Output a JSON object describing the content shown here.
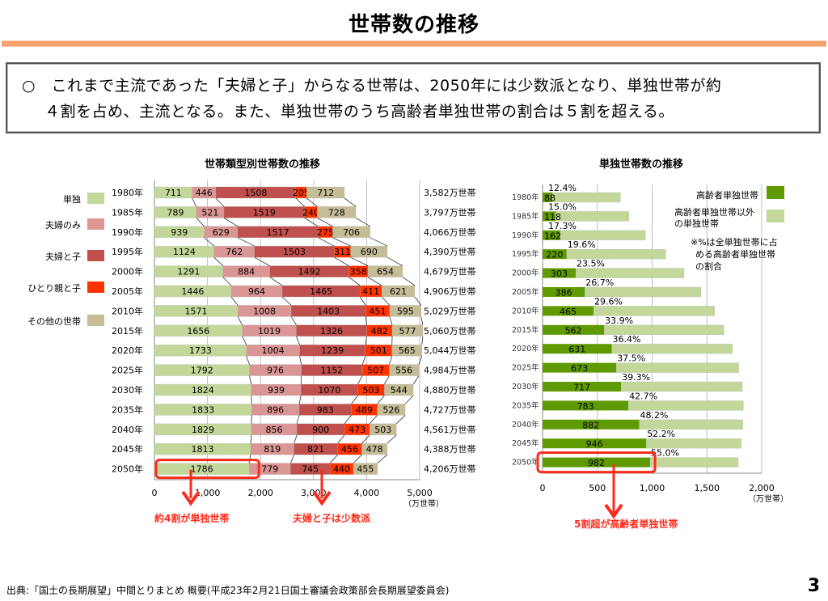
{
  "page": {
    "title": "世帯数の推移",
    "summary_line1": "○　これまで主流であった「夫婦と子」からなる世帯は、2050年には少数派となり、単独世帯が約",
    "summary_line2": "４割を占め、主流となる。また、単独世帯のうち高齢者単独世帯の割合は５割を超える。",
    "footer_source": "出典:「国土の長期展望」中間とりまとめ  概要(平成23年2月21日国土審議会政策部会長期展望委員会)",
    "page_number": "3",
    "annotation_left_1": "約4割が単独世帯",
    "annotation_left_2": "夫婦と子は少数派",
    "annotation_right": "5割超が高齢者単独世帯",
    "accent_color": "#ff2a1a"
  },
  "chart_data": [
    {
      "type": "bar",
      "stacked": true,
      "orientation": "horizontal",
      "title": "世帯類型別世帯数の推移",
      "xlabel": "（万世帯）",
      "ylabel": "",
      "xlim": [
        0,
        5000
      ],
      "x_ticks": [
        "0",
        "1,000",
        "2,000",
        "3,000",
        "4,000",
        "5,000"
      ],
      "grid": true,
      "legend_position": "left",
      "categories": [
        "1980年",
        "1985年",
        "1990年",
        "1995年",
        "2000年",
        "2005年",
        "2010年",
        "2015年",
        "2020年",
        "2025年",
        "2030年",
        "2035年",
        "2040年",
        "2045年",
        "2050年"
      ],
      "series": [
        {
          "name": "単独",
          "color": "#c4d79b",
          "values": [
            711,
            789,
            939,
            1124,
            1291,
            1446,
            1571,
            1656,
            1733,
            1792,
            1824,
            1833,
            1829,
            1813,
            1786
          ]
        },
        {
          "name": "夫婦のみ",
          "color": "#da9694",
          "values": [
            446,
            521,
            629,
            762,
            884,
            964,
            1008,
            1019,
            1004,
            976,
            939,
            896,
            856,
            819,
            779
          ]
        },
        {
          "name": "夫婦と子",
          "color": "#c0504d",
          "values": [
            1508,
            1519,
            1517,
            1503,
            1492,
            1465,
            1403,
            1326,
            1239,
            1152,
            1070,
            983,
            900,
            821,
            745
          ]
        },
        {
          "name": "ひとり親と子",
          "color": "#ff3300",
          "values": [
            205,
            240,
            275,
            311,
            358,
            411,
            451,
            482,
            501,
            507,
            503,
            489,
            473,
            456,
            440
          ]
        },
        {
          "name": "その他の世帯",
          "color": "#c4bd97",
          "values": [
            712,
            728,
            706,
            690,
            654,
            621,
            595,
            577,
            565,
            556,
            544,
            526,
            503,
            478,
            455
          ]
        }
      ],
      "totals": [
        "3,582万世帯",
        "3,797万世帯",
        "4,066万世帯",
        "4,390万世帯",
        "4,679万世帯",
        "4,906万世帯",
        "5,029万世帯",
        "5,060万世帯",
        "5,044万世帯",
        "4,984万世帯",
        "4,880万世帯",
        "4,727万世帯",
        "4,561万世帯",
        "4,388万世帯",
        "4,206万世帯"
      ],
      "highlight_category": "2050年"
    },
    {
      "type": "bar",
      "stacked": true,
      "orientation": "horizontal",
      "title": "単独世帯数の推移",
      "xlabel": "（万世帯）",
      "ylabel": "",
      "xlim": [
        0,
        2000
      ],
      "x_ticks": [
        "0",
        "500",
        "1,000",
        "1,500",
        "2,000"
      ],
      "grid": true,
      "legend_position": "top-right",
      "categories": [
        "1980年",
        "1985年",
        "1990年",
        "1995年",
        "2000年",
        "2005年",
        "2010年",
        "2015年",
        "2020年",
        "2025年",
        "2030年",
        "2035年",
        "2040年",
        "2045年",
        "2050年"
      ],
      "series": [
        {
          "name": "高齢者単独世帯",
          "color": "#5f9a00",
          "values": [
            88,
            118,
            162,
            220,
            303,
            386,
            465,
            562,
            631,
            673,
            717,
            783,
            882,
            946,
            982
          ]
        },
        {
          "name": "高齢者単独世帯以外の単独世帯",
          "color": "#c4d79b",
          "values": [
            623,
            671,
            777,
            904,
            988,
            1060,
            1106,
            1094,
            1102,
            1119,
            1107,
            1050,
            947,
            867,
            804
          ]
        }
      ],
      "percent_labels": [
        "12.4%",
        "15.0%",
        "17.3%",
        "19.6%",
        "23.5%",
        "26.7%",
        "29.6%",
        "33.9%",
        "36.4%",
        "37.5%",
        "39.3%",
        "42.7%",
        "48.2%",
        "52.2%",
        "55.0%"
      ],
      "note": [
        "※%は全単独世帯に占",
        "める高齢者単独世帯",
        "の割合"
      ],
      "highlight_category": "2050年"
    }
  ]
}
